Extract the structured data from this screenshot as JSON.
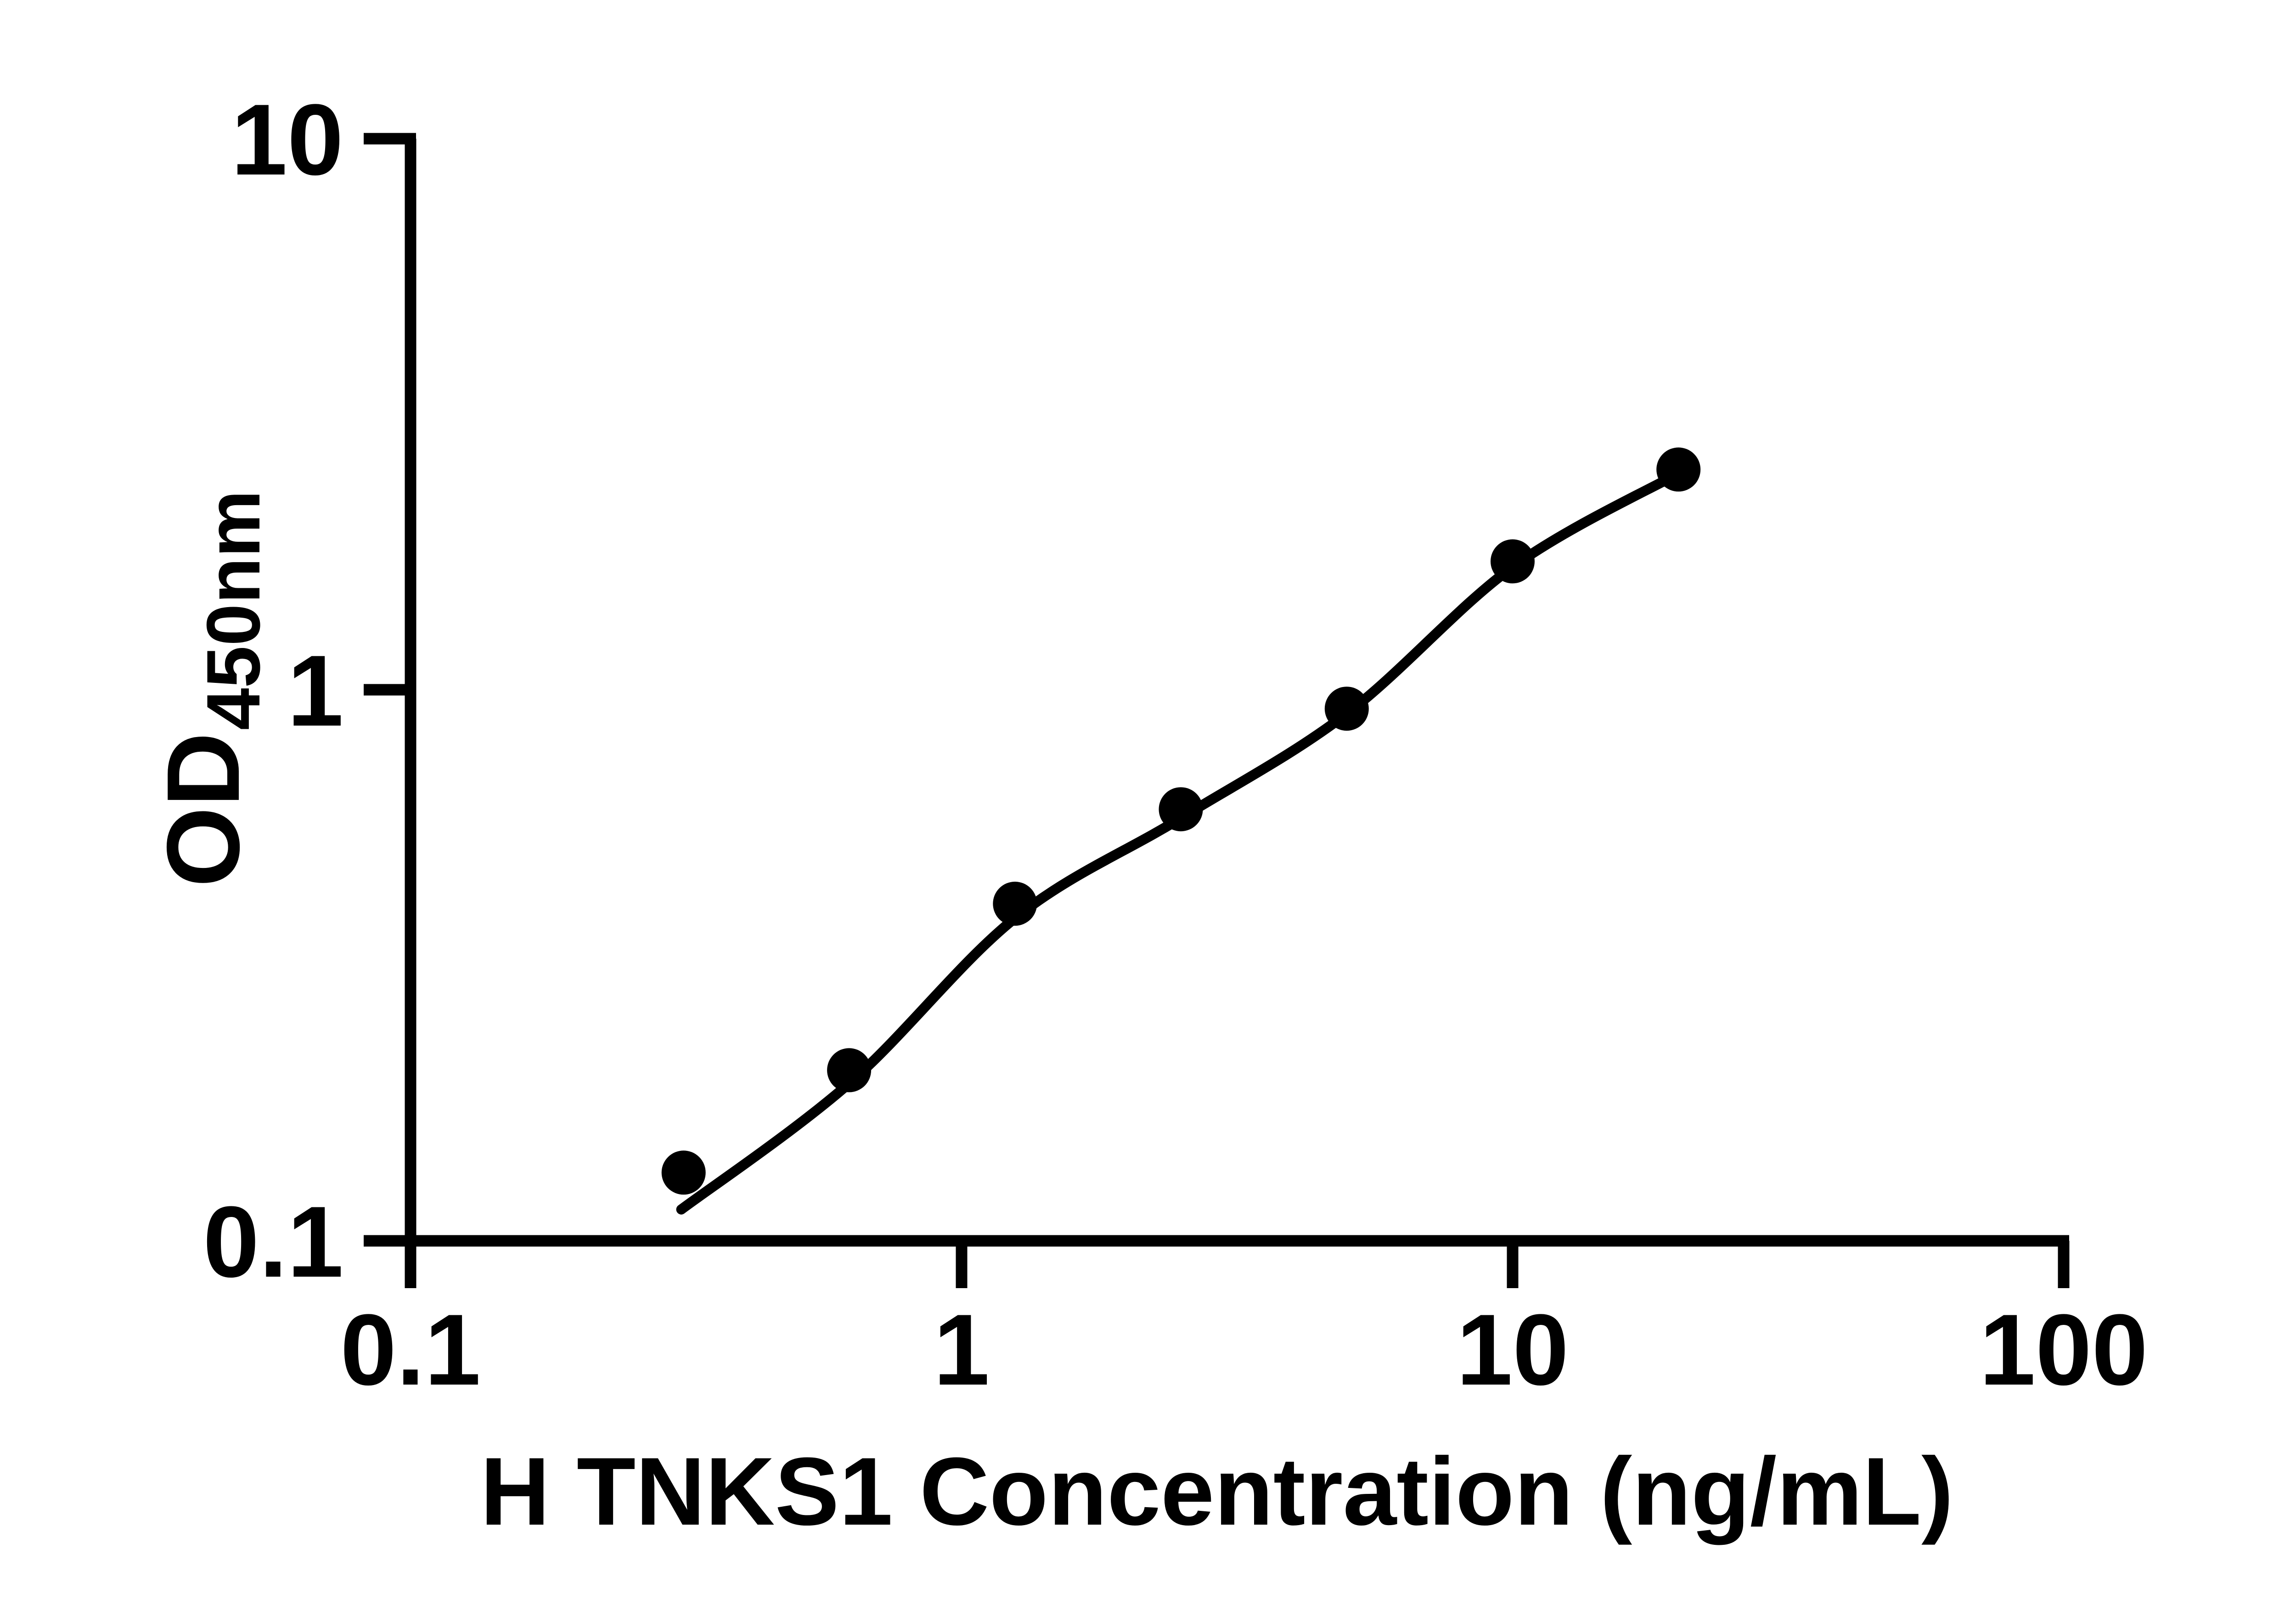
{
  "figure": {
    "background_color": "#ffffff",
    "foreground_color": "#000000",
    "x_axis_title": "H TNKS1 Concentration (ng/mL)",
    "y_axis_title_main": "OD",
    "y_axis_title_sub": "450nm"
  },
  "chart_data": {
    "type": "scatter",
    "title": "",
    "xlabel": "H TNKS1 Concentration (ng/mL)",
    "ylabel": "OD450nm",
    "x_scale": "log10",
    "y_scale": "log10",
    "xlim": [
      0.1,
      100
    ],
    "ylim": [
      0.1,
      10
    ],
    "grid": false,
    "legend_position": "none",
    "x_ticks": [
      0.1,
      1,
      10,
      100
    ],
    "x_tick_labels": [
      "0.1",
      "1",
      "10",
      "100"
    ],
    "y_ticks": [
      0.1,
      1,
      10
    ],
    "y_tick_labels": [
      "0.1",
      "1",
      "10"
    ],
    "series": [
      {
        "name": "H TNKS1 standard curve",
        "marker": "filled-circle",
        "color": "#000000",
        "x": [
          0.313,
          0.625,
          1.25,
          2.5,
          5,
          10,
          20
        ],
        "y": [
          0.133,
          0.204,
          0.409,
          0.607,
          0.924,
          1.71,
          2.51
        ]
      }
    ],
    "fit_curve": {
      "name": "4PL fit line",
      "color": "#000000",
      "x": [
        0.31,
        0.625,
        1.25,
        2.5,
        5,
        10,
        20
      ],
      "y": [
        0.114,
        0.193,
        0.385,
        0.585,
        0.905,
        1.67,
        2.47
      ]
    }
  }
}
